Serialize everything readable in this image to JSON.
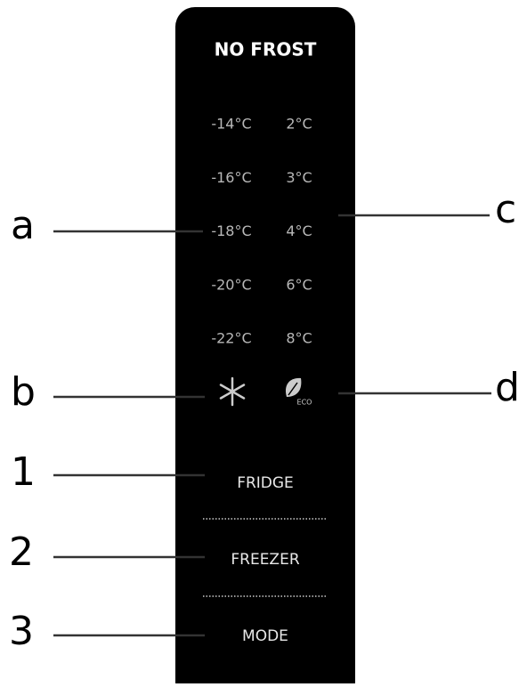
{
  "panel": {
    "brand": "NO FROST",
    "freezer_temps": [
      "-14°C",
      "-16°C",
      "-18°C",
      "-20°C",
      "-22°C"
    ],
    "fridge_temps": [
      "2°C",
      "3°C",
      "4°C",
      "6°C",
      "8°C"
    ],
    "eco_label": "ECO",
    "buttons": [
      "FRIDGE",
      "FREEZER",
      "MODE"
    ]
  },
  "callouts": {
    "a": "a",
    "b": "b",
    "c": "c",
    "d": "d",
    "one": "1",
    "two": "2",
    "three": "3"
  }
}
